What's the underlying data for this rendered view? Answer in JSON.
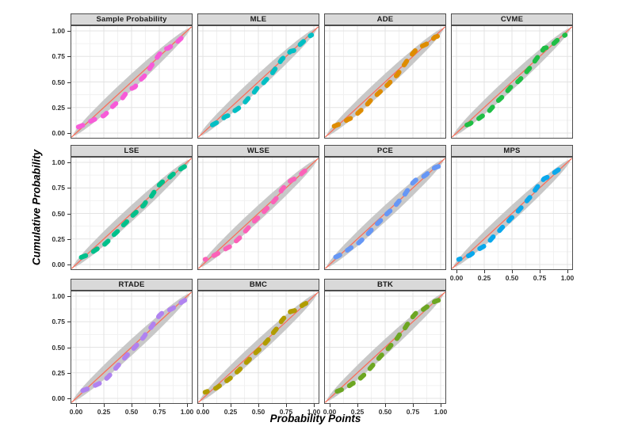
{
  "chart_data": {
    "type": "scatter",
    "layout": "facet_grid_4_columns_3_rows",
    "title": "",
    "xlabel": "Probability Points",
    "ylabel": "Cumulative Probability",
    "xlim": [
      0,
      1
    ],
    "ylim": [
      0,
      1
    ],
    "x_ticks": [
      "0.00",
      "0.25",
      "0.50",
      "0.75",
      "1.00"
    ],
    "y_ticks": [
      "1.00",
      "0.75",
      "0.50",
      "0.25",
      "0.00"
    ],
    "grid": "major and minor gridlines on white panel",
    "reference_line": {
      "type": "diagonal-identity",
      "color": "#F8705C"
    },
    "band": {
      "shape": "rotated-ellipse-confidence-band",
      "half_length": 0.74,
      "half_width": 0.058,
      "fill": "#C8C8C8"
    },
    "style": {
      "strip_bg": "#D9D9D9",
      "strip_border": "#4D4D4D",
      "panel_border": "#4D4D4D",
      "grid_major": "#E3E3E3",
      "grid_minor": "#F1F1F1",
      "tick_color": "#333333",
      "text_color": "#1A1A1A"
    },
    "x": [
      0.02,
      0.07,
      0.12,
      0.16,
      0.2,
      0.25,
      0.29,
      0.33,
      0.37,
      0.41,
      0.45,
      0.49,
      0.53,
      0.57,
      0.61,
      0.64,
      0.68,
      0.71,
      0.75,
      0.79,
      0.83,
      0.87,
      0.91,
      0.95,
      0.98
    ],
    "facets": [
      {
        "label": "Sample Probability",
        "color": "#F75BD8",
        "y": [
          0.06,
          0.08,
          0.11,
          0.13,
          0.15,
          0.17,
          0.21,
          0.26,
          0.3,
          0.33,
          0.39,
          0.43,
          0.45,
          0.51,
          0.55,
          0.59,
          0.66,
          0.71,
          0.77,
          0.82,
          0.83,
          0.86,
          0.89,
          0.93,
          0.96
        ]
      },
      {
        "label": "MLE",
        "color": "#00BFC4",
        "y": [
          0.05,
          0.07,
          0.1,
          0.12,
          0.16,
          0.18,
          0.22,
          0.25,
          0.29,
          0.34,
          0.38,
          0.44,
          0.47,
          0.52,
          0.56,
          0.61,
          0.67,
          0.72,
          0.76,
          0.8,
          0.81,
          0.86,
          0.9,
          0.94,
          0.96
        ]
      },
      {
        "label": "ADE",
        "color": "#DE8C00",
        "y": [
          0.06,
          0.08,
          0.1,
          0.13,
          0.15,
          0.19,
          0.23,
          0.27,
          0.32,
          0.36,
          0.4,
          0.44,
          0.48,
          0.53,
          0.57,
          0.62,
          0.68,
          0.73,
          0.78,
          0.83,
          0.85,
          0.87,
          0.9,
          0.94,
          0.95
        ]
      },
      {
        "label": "CVME",
        "color": "#1FBE45",
        "y": [
          0.05,
          0.07,
          0.09,
          0.12,
          0.14,
          0.18,
          0.21,
          0.26,
          0.31,
          0.35,
          0.4,
          0.45,
          0.48,
          0.52,
          0.57,
          0.61,
          0.66,
          0.71,
          0.77,
          0.83,
          0.84,
          0.87,
          0.91,
          0.94,
          0.96
        ]
      },
      {
        "label": "LSE",
        "color": "#00C08B",
        "y": [
          0.06,
          0.08,
          0.1,
          0.13,
          0.16,
          0.19,
          0.23,
          0.28,
          0.32,
          0.37,
          0.41,
          0.46,
          0.5,
          0.54,
          0.58,
          0.63,
          0.67,
          0.72,
          0.78,
          0.82,
          0.84,
          0.88,
          0.91,
          0.94,
          0.96
        ]
      },
      {
        "label": "WLSE",
        "color": "#FB62B8",
        "y": [
          0.05,
          0.07,
          0.1,
          0.12,
          0.15,
          0.18,
          0.22,
          0.26,
          0.31,
          0.36,
          0.41,
          0.45,
          0.49,
          0.54,
          0.58,
          0.62,
          0.67,
          0.73,
          0.78,
          0.82,
          0.84,
          0.87,
          0.91,
          0.94,
          0.97
        ]
      },
      {
        "label": "PCE",
        "color": "#6697F5",
        "y": [
          0.06,
          0.08,
          0.11,
          0.14,
          0.17,
          0.2,
          0.24,
          0.28,
          0.33,
          0.38,
          0.42,
          0.47,
          0.51,
          0.55,
          0.6,
          0.64,
          0.69,
          0.74,
          0.8,
          0.84,
          0.85,
          0.88,
          0.92,
          0.95,
          0.96
        ]
      },
      {
        "label": "MPS",
        "color": "#0AA8EC",
        "y": [
          0.05,
          0.07,
          0.09,
          0.12,
          0.15,
          0.18,
          0.22,
          0.27,
          0.31,
          0.36,
          0.4,
          0.45,
          0.49,
          0.54,
          0.59,
          0.63,
          0.68,
          0.73,
          0.79,
          0.84,
          0.86,
          0.89,
          0.92,
          0.95,
          0.96
        ]
      },
      {
        "label": "RTADE",
        "color": "#B083F0",
        "y": [
          0.06,
          0.08,
          0.1,
          0.12,
          0.14,
          0.17,
          0.21,
          0.26,
          0.31,
          0.36,
          0.41,
          0.46,
          0.5,
          0.55,
          0.6,
          0.65,
          0.7,
          0.75,
          0.81,
          0.85,
          0.86,
          0.88,
          0.91,
          0.94,
          0.96
        ]
      },
      {
        "label": "BMC",
        "color": "#B19C00",
        "y": [
          0.06,
          0.08,
          0.1,
          0.13,
          0.16,
          0.2,
          0.24,
          0.28,
          0.33,
          0.37,
          0.42,
          0.46,
          0.5,
          0.55,
          0.6,
          0.65,
          0.7,
          0.76,
          0.81,
          0.85,
          0.86,
          0.89,
          0.92,
          0.94,
          0.96
        ]
      },
      {
        "label": "BTK",
        "color": "#6CA622",
        "y": [
          0.05,
          0.07,
          0.09,
          0.11,
          0.14,
          0.17,
          0.21,
          0.25,
          0.3,
          0.35,
          0.4,
          0.45,
          0.49,
          0.54,
          0.59,
          0.64,
          0.69,
          0.74,
          0.8,
          0.85,
          0.86,
          0.89,
          0.92,
          0.95,
          0.96
        ]
      }
    ]
  }
}
